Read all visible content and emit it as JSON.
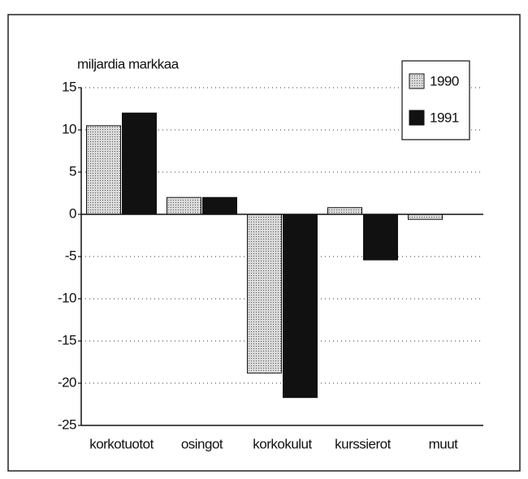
{
  "chart_data": {
    "type": "bar",
    "title": "miljardia markkaa",
    "categories": [
      "korkotuotot",
      "osingot",
      "korkokulut",
      "kurssierot",
      "muut"
    ],
    "series": [
      {
        "name": "1990",
        "color": "#dadada",
        "values": [
          10.5,
          2,
          -18.8,
          0.8,
          -0.6
        ]
      },
      {
        "name": "1991",
        "color": "#111111",
        "values": [
          12,
          2,
          -21.7,
          -5.4,
          0
        ]
      }
    ],
    "ylim": [
      -25,
      15
    ],
    "yticks": [
      15,
      10,
      5,
      0,
      -5,
      -10,
      -15,
      -20,
      -25
    ],
    "grid": true,
    "legend": "top-right"
  }
}
